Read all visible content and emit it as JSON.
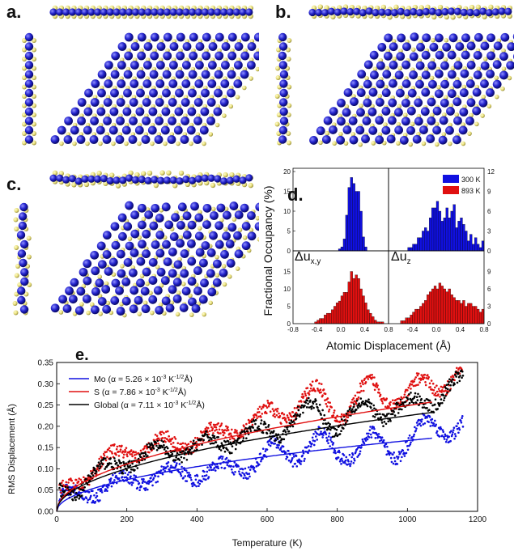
{
  "panel_labels": {
    "a": "a.",
    "b": "b.",
    "c": "c.",
    "d": "d.",
    "e": "e."
  },
  "colors": {
    "mo": "#2222cc",
    "s": "#e8e07a",
    "red": "#e01010",
    "blue": "#1010e0",
    "black": "#000000"
  },
  "histogram": {
    "ylabel": "Fractional Occupancy (%)",
    "xlabel": "Atomic Displacement (Å)",
    "legend": [
      {
        "label": "300 K",
        "color": "#1010e0"
      },
      {
        "label": "893 K",
        "color": "#e01010"
      }
    ],
    "label_xy": "Δu",
    "label_xy_sub": "x,y",
    "label_z": "Δu",
    "label_z_sub": "z",
    "left_yticks": [
      "0",
      "5",
      "10",
      "15",
      "20"
    ],
    "right_yticks": [
      "0",
      "3",
      "6",
      "9",
      "12"
    ],
    "left_xticks": [
      "-0.8",
      "-0.4",
      "0.0",
      "0.4"
    ],
    "right_xticks": [
      "0.8",
      "-0.4",
      "0.0",
      "0.4",
      "0.8"
    ],
    "xrange": [
      -0.8,
      0.8
    ],
    "bins": {
      "xy300": [
        0,
        0,
        0,
        0,
        0,
        0,
        0,
        0,
        0,
        0,
        0,
        0,
        0,
        0,
        0,
        0,
        0,
        0,
        0,
        0.5,
        1,
        3,
        9,
        16,
        18.5,
        17,
        15,
        15,
        10,
        3.5,
        1,
        0,
        0,
        0,
        0,
        0,
        0,
        0,
        0,
        0
      ],
      "z300": [
        0,
        0,
        0,
        0,
        0,
        0,
        0,
        0,
        0.5,
        0.5,
        1,
        1,
        2,
        2,
        3,
        3.5,
        3,
        5,
        6.5,
        6.5,
        7.5,
        6,
        4.5,
        5,
        6.5,
        5,
        6,
        7,
        3.5,
        4.5,
        5,
        4,
        3,
        1.5,
        2.5,
        1,
        2,
        1,
        0.5,
        1.5
      ],
      "xy893": [
        0,
        0,
        0,
        0,
        0,
        0,
        0,
        0,
        0,
        0.5,
        1,
        1.5,
        1.5,
        2.5,
        3,
        3,
        4,
        5,
        6,
        6.5,
        8,
        9,
        9,
        12,
        15,
        13,
        14,
        13,
        10,
        8,
        6,
        4,
        3,
        2,
        1,
        0.5,
        0.5,
        0.5,
        0,
        0
      ],
      "z893": [
        0,
        0,
        0,
        0,
        0,
        0.5,
        0.5,
        1,
        1,
        1.5,
        2,
        2.5,
        2.5,
        3,
        3.5,
        4,
        5,
        5.5,
        6,
        6.5,
        6,
        7,
        6.5,
        6,
        5.5,
        6,
        5,
        4.5,
        4,
        4,
        3.5,
        4,
        3,
        3.5,
        3.5,
        3,
        3,
        2.5,
        2,
        2.5
      ]
    }
  },
  "chart_data": {
    "type": "scatter",
    "xlabel": "Temperature (K)",
    "ylabel": "RMS Displacement (Å)",
    "xlim": [
      0,
      1200
    ],
    "ylim": [
      0,
      0.35
    ],
    "xticks": [
      0,
      200,
      400,
      600,
      800,
      1000,
      1200
    ],
    "yticks": [
      0.0,
      0.05,
      0.1,
      0.15,
      0.2,
      0.25,
      0.3,
      0.35
    ],
    "legend_position": "top-left",
    "series": [
      {
        "name": "Mo (α = 5.26 × 10",
        "sup_a": "-3",
        "mid": " K",
        "sup_b": "-1/2",
        "tail": "Å)",
        "color": "#1010e0",
        "alpha": 0.00526,
        "anchors": [
          [
            20,
            0.03
          ],
          [
            60,
            0.04
          ],
          [
            100,
            0.05
          ],
          [
            150,
            0.06
          ],
          [
            200,
            0.07
          ],
          [
            250,
            0.08
          ],
          [
            300,
            0.085
          ],
          [
            350,
            0.09
          ],
          [
            400,
            0.09
          ],
          [
            450,
            0.095
          ],
          [
            500,
            0.1
          ],
          [
            550,
            0.11
          ],
          [
            600,
            0.13
          ],
          [
            650,
            0.14
          ],
          [
            700,
            0.15
          ],
          [
            750,
            0.16
          ],
          [
            800,
            0.14
          ],
          [
            850,
            0.15
          ],
          [
            900,
            0.16
          ],
          [
            950,
            0.14
          ],
          [
            1000,
            0.17
          ],
          [
            1050,
            0.19
          ],
          [
            1100,
            0.2
          ],
          [
            1150,
            0.21
          ]
        ]
      },
      {
        "name": "S (α = 7.86 × 10",
        "sup_a": "-3",
        "mid": " K",
        "sup_b": "-1/2",
        "tail": "Å)",
        "color": "#e01010",
        "alpha": 0.00786,
        "anchors": [
          [
            20,
            0.04
          ],
          [
            60,
            0.07
          ],
          [
            100,
            0.1
          ],
          [
            150,
            0.12
          ],
          [
            200,
            0.14
          ],
          [
            250,
            0.15
          ],
          [
            300,
            0.16
          ],
          [
            350,
            0.16
          ],
          [
            400,
            0.17
          ],
          [
            450,
            0.18
          ],
          [
            500,
            0.19
          ],
          [
            550,
            0.21
          ],
          [
            600,
            0.22
          ],
          [
            650,
            0.24
          ],
          [
            700,
            0.26
          ],
          [
            750,
            0.27
          ],
          [
            800,
            0.24
          ],
          [
            850,
            0.25
          ],
          [
            900,
            0.29
          ],
          [
            950,
            0.28
          ],
          [
            1000,
            0.26
          ],
          [
            1050,
            0.3
          ],
          [
            1100,
            0.31
          ],
          [
            1150,
            0.32
          ]
        ]
      },
      {
        "name": "Global (α = 7.11 × 10",
        "sup_a": "-3",
        "mid": " K",
        "sup_b": "-1/2",
        "tail": "Å)",
        "color": "#000000",
        "alpha": 0.00711,
        "anchors": [
          [
            20,
            0.04
          ],
          [
            60,
            0.06
          ],
          [
            100,
            0.085
          ],
          [
            150,
            0.1
          ],
          [
            200,
            0.12
          ],
          [
            250,
            0.13
          ],
          [
            300,
            0.14
          ],
          [
            350,
            0.145
          ],
          [
            400,
            0.15
          ],
          [
            450,
            0.16
          ],
          [
            500,
            0.17
          ],
          [
            550,
            0.18
          ],
          [
            600,
            0.19
          ],
          [
            650,
            0.21
          ],
          [
            700,
            0.22
          ],
          [
            750,
            0.24
          ],
          [
            800,
            0.21
          ],
          [
            850,
            0.22
          ],
          [
            900,
            0.25
          ],
          [
            950,
            0.24
          ],
          [
            1000,
            0.23
          ],
          [
            1050,
            0.27
          ],
          [
            1100,
            0.28
          ],
          [
            1150,
            0.29
          ]
        ]
      }
    ]
  }
}
